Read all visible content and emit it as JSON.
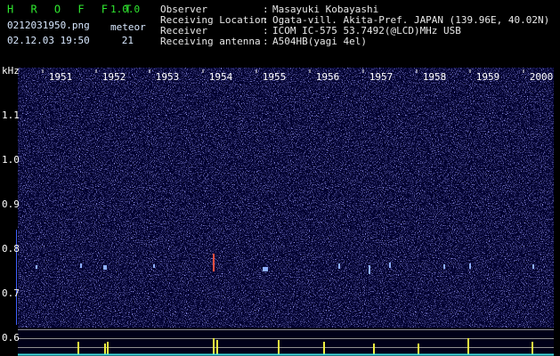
{
  "header": {
    "app_name": "H R O F F T",
    "version": "1.0.0",
    "file_name": "0212031950.png",
    "meteor_label": "meteor",
    "timestamp": "02.12.03 19:50",
    "meteor_count": 21,
    "fields": [
      {
        "label": "Observer",
        "value": "Masayuki Kobayashi"
      },
      {
        "label": "Receiving Location",
        "value": "Ogata-vill. Akita-Pref. JAPAN (139.96E, 40.02N)"
      },
      {
        "label": "Receiver",
        "value": "ICOM IC-575 53.7492(@LCD)MHz USB"
      },
      {
        "label": "Receiving antenna",
        "value": "A504HB(yagi 4el)"
      }
    ]
  },
  "spectrogram": {
    "y_unit": "kHz",
    "y_labels": [
      "1.1",
      "1.0",
      "0.9",
      "0.8",
      "0.7",
      "0.6"
    ],
    "time_labels": [
      "1951",
      "1952",
      "1953",
      "1954",
      "1955",
      "1956",
      "1957",
      "1958",
      "1959",
      "2000"
    ]
  }
}
